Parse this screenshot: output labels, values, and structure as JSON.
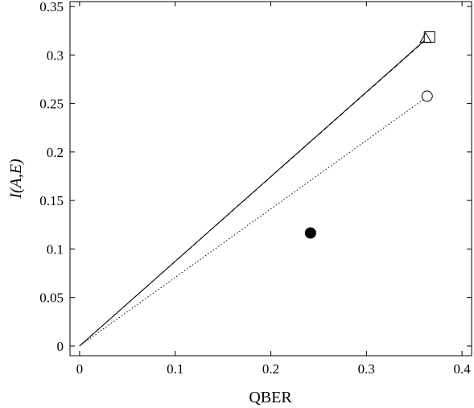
{
  "chart_data": {
    "type": "line",
    "xlabel": "QBER",
    "ylabel": "I(A,E)",
    "xlim": [
      -0.01,
      0.41
    ],
    "ylim": [
      -0.01,
      0.355
    ],
    "x_ticks": [
      {
        "value": 0,
        "label": "0"
      },
      {
        "value": 0.1,
        "label": "0.1"
      },
      {
        "value": 0.2,
        "label": "0.2"
      },
      {
        "value": 0.3,
        "label": "0.3"
      },
      {
        "value": 0.4,
        "label": "0.4"
      }
    ],
    "y_ticks": [
      {
        "value": 0,
        "label": "0"
      },
      {
        "value": 0.05,
        "label": "0.05"
      },
      {
        "value": 0.1,
        "label": "0.1"
      },
      {
        "value": 0.15,
        "label": "0.15"
      },
      {
        "value": 0.2,
        "label": "0.2"
      },
      {
        "value": 0.25,
        "label": "0.25"
      },
      {
        "value": 0.3,
        "label": "0.3"
      },
      {
        "value": 0.35,
        "label": "0.35"
      }
    ],
    "grid": false,
    "series": [
      {
        "style": "solid",
        "color": "#000000",
        "points": [
          [
            0,
            0
          ],
          [
            0.362,
            0.316
          ]
        ]
      },
      {
        "style": "dashed",
        "color": "#000000",
        "points": [
          [
            0,
            0
          ],
          [
            0.366,
            0.319
          ]
        ]
      },
      {
        "style": "dotted",
        "color": "#000000",
        "points": [
          [
            0,
            0
          ],
          [
            0.361,
            0.255
          ]
        ]
      }
    ],
    "markers": [
      {
        "shape": "square",
        "fill": "none",
        "x": 0.366,
        "y": 0.3185
      },
      {
        "shape": "triangle",
        "fill": "none",
        "x": 0.362,
        "y": 0.317
      },
      {
        "shape": "circle",
        "fill": "none",
        "x": 0.3635,
        "y": 0.2575
      },
      {
        "shape": "circle",
        "fill": "#000000",
        "x": 0.2415,
        "y": 0.1165
      }
    ]
  }
}
